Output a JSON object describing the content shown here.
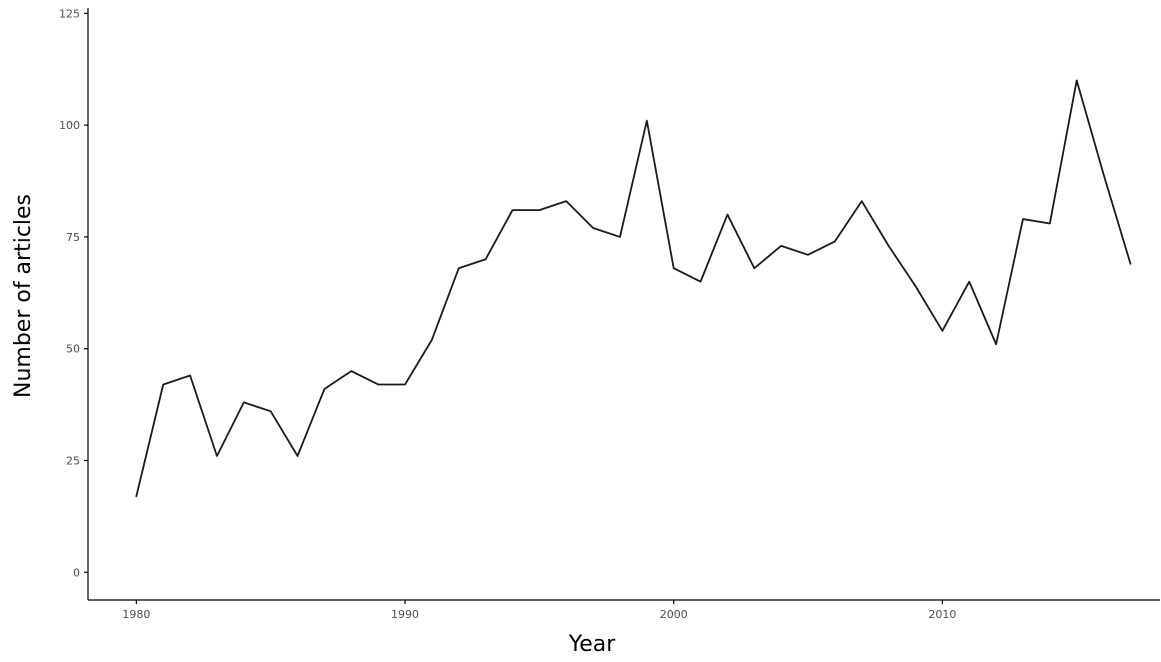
{
  "chart_data": {
    "type": "line",
    "title": "",
    "xlabel": "Year",
    "ylabel": "Number of articles",
    "xlim": [
      1978.2,
      2018.1
    ],
    "ylim": [
      -6.2,
      126.2
    ],
    "xticks": [
      1980,
      1990,
      2000,
      2010
    ],
    "yticks": [
      0,
      25,
      50,
      75,
      100,
      125
    ],
    "grid": false,
    "legend": "none",
    "line_color": "#1a1a1a",
    "series": [
      {
        "x": [
          1980,
          1981,
          1982,
          1983,
          1984,
          1985,
          1986,
          1987,
          1988,
          1989,
          1990,
          1991,
          1992,
          1993,
          1994,
          1995,
          1996,
          1997,
          1998,
          1999,
          2000,
          2001,
          2002,
          2003,
          2004,
          2005,
          2006,
          2007,
          2008,
          2009,
          2010,
          2011,
          2012,
          2013,
          2014,
          2015,
          2016,
          2017
        ],
        "values": [
          17,
          42,
          44,
          26,
          38,
          36,
          26,
          41,
          45,
          42,
          42,
          52,
          68,
          70,
          81,
          81,
          83,
          77,
          75,
          101,
          68,
          65,
          80,
          68,
          73,
          71,
          74,
          83,
          73,
          64,
          54,
          65,
          51,
          79,
          78,
          110,
          89,
          69
        ]
      }
    ]
  }
}
